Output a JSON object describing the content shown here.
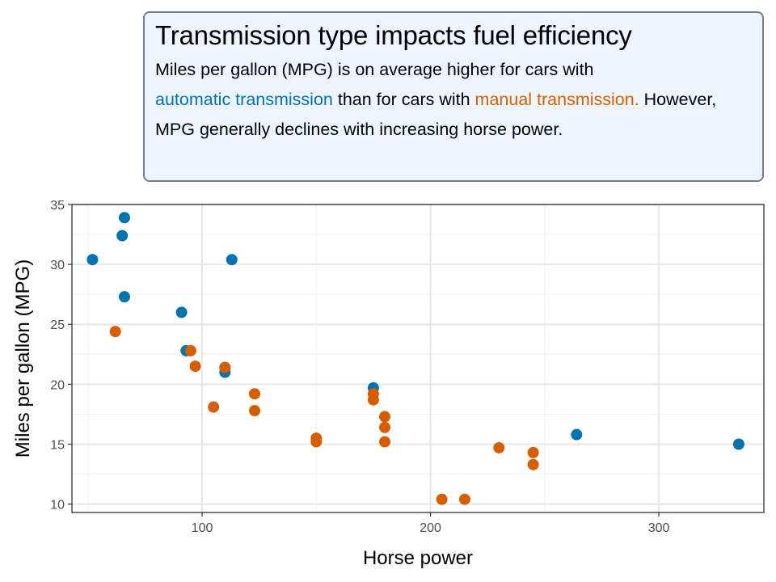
{
  "annotation": {
    "title": "Transmission type impacts fuel efficiency",
    "text_1": "Miles per gallon (MPG) is on average higher for cars with",
    "auto_label": "automatic transmission",
    "text_2": " than for cars with ",
    "manual_label": "manual transmission.",
    "text_3": " However, MPG generally declines with increasing horse power."
  },
  "colors": {
    "automatic": "#0072B2",
    "manual": "#D55E00",
    "grid_major": "#e6e6e6",
    "grid_minor": "#f2f2f2",
    "panel_border": "#333333",
    "annotation_bg": "#eef5ff"
  },
  "chart_data": {
    "type": "scatter",
    "xlabel": "Horse power",
    "ylabel": "Miles per gallon (MPG)",
    "xlim": [
      43,
      346
    ],
    "ylim": [
      9.3,
      35
    ],
    "xticks": [
      100,
      200,
      300
    ],
    "yticks": [
      10,
      15,
      20,
      25,
      30,
      35
    ],
    "grid": true,
    "series": [
      {
        "name": "automatic transmission",
        "color": "#0072B2",
        "points": [
          [
            66,
            33.9
          ],
          [
            65,
            32.4
          ],
          [
            52,
            30.4
          ],
          [
            113,
            30.4
          ],
          [
            66,
            27.3
          ],
          [
            91,
            26.0
          ],
          [
            93,
            22.8
          ],
          [
            110,
            21.4
          ],
          [
            110,
            21.0
          ],
          [
            175,
            19.7
          ],
          [
            264,
            15.8
          ],
          [
            335,
            15.0
          ]
        ]
      },
      {
        "name": "manual transmission",
        "color": "#D55E00",
        "points": [
          [
            62,
            24.4
          ],
          [
            95,
            22.8
          ],
          [
            97,
            21.5
          ],
          [
            110,
            21.4
          ],
          [
            123,
            19.2
          ],
          [
            175,
            19.2
          ],
          [
            175,
            18.7
          ],
          [
            105,
            18.1
          ],
          [
            123,
            17.8
          ],
          [
            180,
            17.3
          ],
          [
            180,
            16.4
          ],
          [
            150,
            15.5
          ],
          [
            150,
            15.2
          ],
          [
            180,
            15.2
          ],
          [
            230,
            14.7
          ],
          [
            245,
            14.3
          ],
          [
            245,
            13.3
          ],
          [
            205,
            10.4
          ],
          [
            215,
            10.4
          ]
        ]
      }
    ]
  }
}
